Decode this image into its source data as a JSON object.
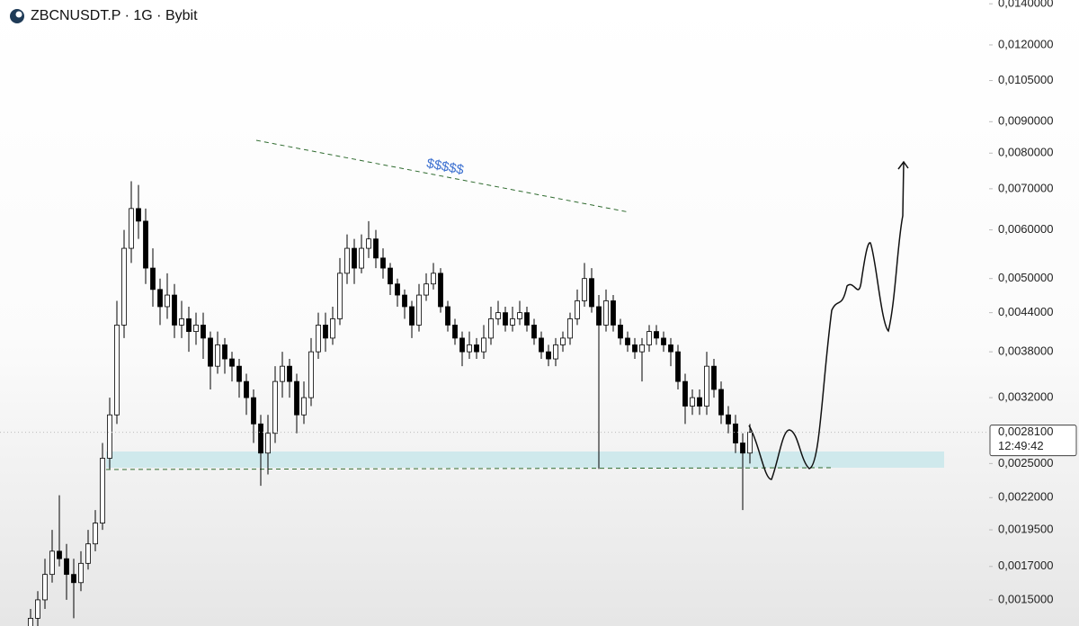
{
  "chart_data": {
    "type": "candlestick",
    "title": "ZBCNUSDT.P · 1G · Bybit",
    "log_scale": true,
    "grid": false,
    "up_color": "#ffffff",
    "down_color": "#000000",
    "wick_color": "#000000",
    "ylim": [
      0.00136,
      0.0142
    ],
    "yticks": [
      {
        "value": 0.014,
        "label": "0,0140000"
      },
      {
        "value": 0.012,
        "label": "0,0120000"
      },
      {
        "value": 0.0105,
        "label": "0,0105000"
      },
      {
        "value": 0.009,
        "label": "0,0090000"
      },
      {
        "value": 0.008,
        "label": "0,0080000"
      },
      {
        "value": 0.007,
        "label": "0,0070000"
      },
      {
        "value": 0.006,
        "label": "0,0060000"
      },
      {
        "value": 0.005,
        "label": "0,0050000"
      },
      {
        "value": 0.0044,
        "label": "0,0044000"
      },
      {
        "value": 0.0038,
        "label": "0,0038000"
      },
      {
        "value": 0.0032,
        "label": "0,0032000"
      },
      {
        "value": 0.0025,
        "label": "0,0025000"
      },
      {
        "value": 0.0022,
        "label": "0,0022000"
      },
      {
        "value": 0.00195,
        "label": "0,0019500"
      },
      {
        "value": 0.0017,
        "label": "0,0017000"
      },
      {
        "value": 0.0015,
        "label": "0,0015000"
      }
    ],
    "last_price": {
      "value": 0.00281,
      "label": "0,0028100"
    },
    "countdown": "12:49:42",
    "annotation": "$$$$$",
    "ohlc": [
      [
        0.00135,
        0.00145,
        0.0013,
        0.0014
      ],
      [
        0.0014,
        0.00155,
        0.00136,
        0.0015
      ],
      [
        0.0015,
        0.00175,
        0.00145,
        0.00165
      ],
      [
        0.00165,
        0.00195,
        0.0016,
        0.0018
      ],
      [
        0.0018,
        0.00222,
        0.0017,
        0.00175
      ],
      [
        0.00175,
        0.00185,
        0.0015,
        0.00165
      ],
      [
        0.00165,
        0.00175,
        0.0014,
        0.0016
      ],
      [
        0.0016,
        0.0018,
        0.00155,
        0.00172
      ],
      [
        0.00172,
        0.00195,
        0.00168,
        0.00185
      ],
      [
        0.00185,
        0.0021,
        0.0018,
        0.002
      ],
      [
        0.002,
        0.0027,
        0.00195,
        0.00255
      ],
      [
        0.00255,
        0.0032,
        0.00245,
        0.003
      ],
      [
        0.003,
        0.0046,
        0.0029,
        0.0042
      ],
      [
        0.0042,
        0.006,
        0.004,
        0.0056
      ],
      [
        0.0056,
        0.0072,
        0.0053,
        0.0065
      ],
      [
        0.0065,
        0.0071,
        0.0058,
        0.0062
      ],
      [
        0.0062,
        0.0065,
        0.0049,
        0.0052
      ],
      [
        0.0052,
        0.0056,
        0.0045,
        0.0048
      ],
      [
        0.0048,
        0.005,
        0.0042,
        0.0045
      ],
      [
        0.0045,
        0.0051,
        0.0043,
        0.0047
      ],
      [
        0.0047,
        0.0049,
        0.004,
        0.0042
      ],
      [
        0.0042,
        0.0046,
        0.004,
        0.0043
      ],
      [
        0.0043,
        0.0045,
        0.0038,
        0.0041
      ],
      [
        0.0041,
        0.0044,
        0.0039,
        0.0042
      ],
      [
        0.0042,
        0.0044,
        0.0037,
        0.004
      ],
      [
        0.004,
        0.0041,
        0.0033,
        0.0036
      ],
      [
        0.0036,
        0.0041,
        0.0035,
        0.0039
      ],
      [
        0.0039,
        0.004,
        0.0035,
        0.0037
      ],
      [
        0.0037,
        0.0038,
        0.0034,
        0.0036
      ],
      [
        0.0036,
        0.0037,
        0.0032,
        0.0034
      ],
      [
        0.0034,
        0.0035,
        0.003,
        0.0032
      ],
      [
        0.0032,
        0.0033,
        0.0027,
        0.0029
      ],
      [
        0.0029,
        0.003,
        0.0023,
        0.0026
      ],
      [
        0.0026,
        0.003,
        0.0024,
        0.0028
      ],
      [
        0.0028,
        0.0036,
        0.0027,
        0.0034
      ],
      [
        0.0034,
        0.0038,
        0.0032,
        0.0036
      ],
      [
        0.0036,
        0.0037,
        0.0032,
        0.0034
      ],
      [
        0.0034,
        0.0035,
        0.0028,
        0.003
      ],
      [
        0.003,
        0.0034,
        0.0029,
        0.0032
      ],
      [
        0.0032,
        0.004,
        0.0031,
        0.0038
      ],
      [
        0.0038,
        0.0044,
        0.0037,
        0.0042
      ],
      [
        0.0042,
        0.0044,
        0.0038,
        0.004
      ],
      [
        0.004,
        0.0045,
        0.0039,
        0.0043
      ],
      [
        0.0043,
        0.0054,
        0.0042,
        0.0051
      ],
      [
        0.0051,
        0.0059,
        0.0049,
        0.0056
      ],
      [
        0.0056,
        0.0058,
        0.0049,
        0.0052
      ],
      [
        0.0052,
        0.0059,
        0.0051,
        0.0056
      ],
      [
        0.0056,
        0.0062,
        0.0054,
        0.0058
      ],
      [
        0.0058,
        0.006,
        0.0052,
        0.0054
      ],
      [
        0.0054,
        0.0056,
        0.005,
        0.0052
      ],
      [
        0.0052,
        0.0053,
        0.0047,
        0.0049
      ],
      [
        0.0049,
        0.005,
        0.0045,
        0.0047
      ],
      [
        0.0047,
        0.0048,
        0.0043,
        0.0045
      ],
      [
        0.0045,
        0.0046,
        0.004,
        0.0042
      ],
      [
        0.0042,
        0.0049,
        0.0041,
        0.0047
      ],
      [
        0.0047,
        0.0051,
        0.0046,
        0.0049
      ],
      [
        0.0049,
        0.0053,
        0.0048,
        0.0051
      ],
      [
        0.0051,
        0.0052,
        0.0044,
        0.0045
      ],
      [
        0.0045,
        0.0046,
        0.0041,
        0.0042
      ],
      [
        0.0042,
        0.0043,
        0.0039,
        0.004
      ],
      [
        0.004,
        0.0041,
        0.0036,
        0.0038
      ],
      [
        0.0038,
        0.0041,
        0.0037,
        0.0039
      ],
      [
        0.0039,
        0.004,
        0.0037,
        0.0038
      ],
      [
        0.0038,
        0.0042,
        0.0037,
        0.004
      ],
      [
        0.004,
        0.0045,
        0.0039,
        0.0043
      ],
      [
        0.0043,
        0.0046,
        0.0042,
        0.0044
      ],
      [
        0.0044,
        0.0045,
        0.0041,
        0.0042
      ],
      [
        0.0042,
        0.0045,
        0.0041,
        0.0043
      ],
      [
        0.0043,
        0.0046,
        0.0042,
        0.0044
      ],
      [
        0.0044,
        0.0045,
        0.0041,
        0.0042
      ],
      [
        0.0042,
        0.0043,
        0.0039,
        0.004
      ],
      [
        0.004,
        0.0041,
        0.0037,
        0.0038
      ],
      [
        0.0038,
        0.0039,
        0.0036,
        0.0037
      ],
      [
        0.0037,
        0.004,
        0.0036,
        0.0039
      ],
      [
        0.0039,
        0.0041,
        0.0038,
        0.004
      ],
      [
        0.004,
        0.0044,
        0.0039,
        0.0043
      ],
      [
        0.0043,
        0.0048,
        0.0042,
        0.0046
      ],
      [
        0.0046,
        0.0053,
        0.0045,
        0.005
      ],
      [
        0.005,
        0.0052,
        0.0044,
        0.0045
      ],
      [
        0.0045,
        0.0047,
        0.00245,
        0.0042
      ],
      [
        0.0042,
        0.0048,
        0.0041,
        0.0046
      ],
      [
        0.0046,
        0.0047,
        0.0041,
        0.0042
      ],
      [
        0.0042,
        0.0043,
        0.0039,
        0.004
      ],
      [
        0.004,
        0.0041,
        0.0038,
        0.0039
      ],
      [
        0.0039,
        0.004,
        0.0037,
        0.0038
      ],
      [
        0.0038,
        0.004,
        0.0034,
        0.0039
      ],
      [
        0.0039,
        0.0042,
        0.0038,
        0.0041
      ],
      [
        0.0041,
        0.0042,
        0.0039,
        0.004
      ],
      [
        0.004,
        0.0041,
        0.0038,
        0.0039
      ],
      [
        0.0039,
        0.004,
        0.0036,
        0.0038
      ],
      [
        0.0038,
        0.0039,
        0.0033,
        0.0034
      ],
      [
        0.0034,
        0.0035,
        0.0029,
        0.0031
      ],
      [
        0.0031,
        0.0033,
        0.003,
        0.0032
      ],
      [
        0.0032,
        0.0033,
        0.003,
        0.0031
      ],
      [
        0.0031,
        0.0038,
        0.003,
        0.0036
      ],
      [
        0.0036,
        0.0037,
        0.0032,
        0.0033
      ],
      [
        0.0033,
        0.0034,
        0.0029,
        0.003
      ],
      [
        0.003,
        0.0031,
        0.0028,
        0.0029
      ],
      [
        0.0029,
        0.003,
        0.0026,
        0.0027
      ],
      [
        0.0027,
        0.0028,
        0.0021,
        0.0026
      ],
      [
        0.0026,
        0.0029,
        0.0025,
        0.00281
      ]
    ]
  }
}
